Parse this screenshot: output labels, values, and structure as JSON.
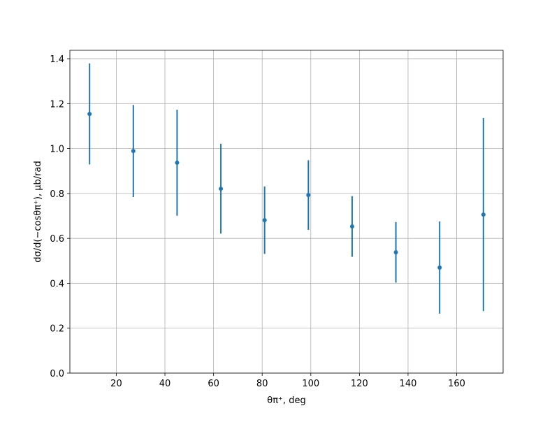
{
  "chart_data": {
    "type": "errorbar",
    "x_label": "θπ⁺, deg",
    "y_label": "dσ/d(−cosθπ⁺), μb/rad",
    "x": [
      9,
      27,
      45,
      63,
      81,
      99,
      117,
      135,
      153,
      171
    ],
    "series": [
      {
        "color": "#1f77b4",
        "values": [
          1.154,
          0.989,
          0.937,
          0.821,
          0.681,
          0.793,
          0.653,
          0.538,
          0.47,
          0.706
        ],
        "errors": [
          0.225,
          0.205,
          0.236,
          0.2,
          0.15,
          0.155,
          0.135,
          0.135,
          0.205,
          0.43
        ]
      }
    ],
    "xlim": [
      0.9,
      179.1
    ],
    "ylim": [
      0,
      1.4375
    ],
    "xticks": [
      20,
      40,
      60,
      80,
      100,
      120,
      140,
      160
    ],
    "yticks": [
      {
        "value": 0,
        "label": "0.0"
      },
      0.2,
      0.4,
      0.6,
      0.8,
      {
        "value": 1,
        "label": "1.0"
      },
      1.2,
      1.4
    ],
    "grid": true
  }
}
